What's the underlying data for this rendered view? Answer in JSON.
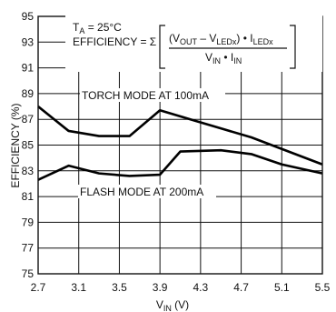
{
  "chart_data": {
    "type": "line",
    "xlabel": {
      "main": "V",
      "sub": "IN",
      "unit": " (V)"
    },
    "ylabel": "EFFICIENCY (%)",
    "xlim": [
      2.7,
      5.5
    ],
    "ylim": [
      75,
      95
    ],
    "x_ticks": [
      "2.7",
      "3.1",
      "3.5",
      "3.9",
      "4.3",
      "4.7",
      "5.1",
      "5.5"
    ],
    "y_ticks": [
      "75",
      "77",
      "79",
      "81",
      "83",
      "85",
      "87",
      "89",
      "91",
      "93",
      "95"
    ],
    "grid": "major",
    "series": [
      {
        "name": "TORCH MODE AT 100mA",
        "x": [
          2.7,
          3.0,
          3.3,
          3.6,
          3.9,
          4.2,
          4.5,
          4.8,
          5.1,
          5.5
        ],
        "y": [
          88.0,
          86.1,
          85.7,
          85.7,
          87.7,
          87.0,
          86.3,
          85.6,
          84.7,
          83.5
        ]
      },
      {
        "name": "FLASH MODE AT 200mA",
        "x": [
          2.7,
          3.0,
          3.3,
          3.6,
          3.9,
          4.1,
          4.5,
          4.8,
          5.1,
          5.5
        ],
        "y": [
          82.3,
          83.4,
          82.8,
          82.6,
          82.7,
          84.5,
          84.6,
          84.3,
          83.5,
          82.8
        ]
      }
    ],
    "annotations": {
      "ta_label": "T",
      "ta_sub": "A",
      "ta_value": " = 25°C",
      "eff_label": "EFFICIENCY = Σ",
      "num_open": "(V",
      "num_sub1": "OUT",
      "num_minus": " – V",
      "num_sub2": "LEDx",
      "num_close": ") • I",
      "num_sub3": "LEDx",
      "den_v": "V",
      "den_sub1": "IN",
      "den_dot": " • I",
      "den_sub2": "IN"
    }
  }
}
